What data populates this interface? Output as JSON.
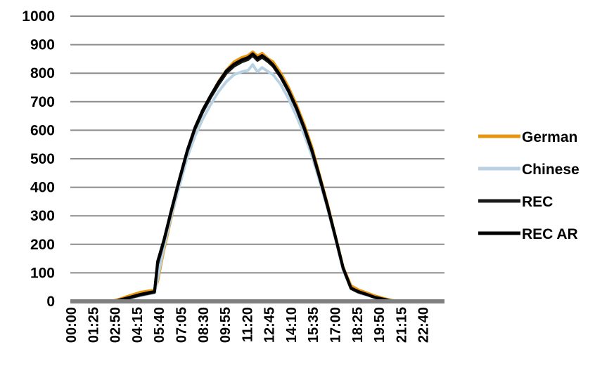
{
  "chart_data": {
    "type": "line",
    "title": "",
    "xlabel": "",
    "ylabel": "",
    "ylim": [
      0,
      1000
    ],
    "y_ticks": [
      "0",
      "100",
      "200",
      "300",
      "400",
      "500",
      "600",
      "700",
      "800",
      "900",
      "1000"
    ],
    "x_tick_labels": [
      "00:00",
      "01:25",
      "02:50",
      "04:15",
      "05:40",
      "07:05",
      "08:30",
      "09:55",
      "11:20",
      "12:45",
      "14:10",
      "15:35",
      "17:00",
      "18:25",
      "19:50",
      "21:15",
      "22:40"
    ],
    "x_range_hours": [
      0,
      24
    ],
    "grid": "horizontal",
    "legend_position": "right",
    "series": [
      {
        "name": "German",
        "color": "#E8960F",
        "points": [
          [
            0,
            0
          ],
          [
            2.5,
            0
          ],
          [
            3,
            5
          ],
          [
            3.8,
            20
          ],
          [
            4.5,
            32
          ],
          [
            5.4,
            40
          ],
          [
            5.6,
            70
          ],
          [
            6.0,
            180
          ],
          [
            6.5,
            300
          ],
          [
            7.0,
            410
          ],
          [
            7.5,
            520
          ],
          [
            8.0,
            600
          ],
          [
            8.5,
            670
          ],
          [
            9.0,
            720
          ],
          [
            9.5,
            770
          ],
          [
            10.0,
            810
          ],
          [
            10.5,
            840
          ],
          [
            11.0,
            855
          ],
          [
            11.4,
            862
          ],
          [
            11.7,
            875
          ],
          [
            12.0,
            860
          ],
          [
            12.3,
            870
          ],
          [
            12.7,
            850
          ],
          [
            13.0,
            840
          ],
          [
            13.5,
            800
          ],
          [
            14.0,
            750
          ],
          [
            14.5,
            690
          ],
          [
            15.0,
            620
          ],
          [
            15.5,
            540
          ],
          [
            16.0,
            440
          ],
          [
            16.5,
            340
          ],
          [
            17.0,
            230
          ],
          [
            17.5,
            120
          ],
          [
            18.0,
            55
          ],
          [
            18.5,
            40
          ],
          [
            19.0,
            30
          ],
          [
            19.5,
            20
          ],
          [
            20.0,
            12
          ],
          [
            20.5,
            5
          ],
          [
            21.0,
            0
          ],
          [
            24,
            0
          ]
        ]
      },
      {
        "name": "Chinese",
        "color": "#B8D2E4",
        "points": [
          [
            0,
            0
          ],
          [
            2.5,
            0
          ],
          [
            3,
            2
          ],
          [
            3.8,
            10
          ],
          [
            4.5,
            20
          ],
          [
            5.4,
            30
          ],
          [
            5.6,
            80
          ],
          [
            6.0,
            190
          ],
          [
            6.5,
            305
          ],
          [
            7.0,
            405
          ],
          [
            7.5,
            505
          ],
          [
            8.0,
            580
          ],
          [
            8.5,
            640
          ],
          [
            9.0,
            690
          ],
          [
            9.5,
            735
          ],
          [
            10.0,
            770
          ],
          [
            10.5,
            795
          ],
          [
            11.0,
            805
          ],
          [
            11.4,
            810
          ],
          [
            11.7,
            830
          ],
          [
            12.0,
            805
          ],
          [
            12.3,
            820
          ],
          [
            12.7,
            805
          ],
          [
            13.0,
            795
          ],
          [
            13.5,
            760
          ],
          [
            14.0,
            710
          ],
          [
            14.5,
            650
          ],
          [
            15.0,
            585
          ],
          [
            15.5,
            510
          ],
          [
            16.0,
            420
          ],
          [
            16.5,
            325
          ],
          [
            17.0,
            220
          ],
          [
            17.5,
            110
          ],
          [
            18.0,
            45
          ],
          [
            18.5,
            30
          ],
          [
            19.0,
            22
          ],
          [
            19.5,
            14
          ],
          [
            20.0,
            8
          ],
          [
            20.5,
            3
          ],
          [
            21.0,
            0
          ],
          [
            24,
            0
          ]
        ]
      },
      {
        "name": "REC",
        "color": "#1A1A1A",
        "points": [
          [
            0,
            0
          ],
          [
            2.5,
            0
          ],
          [
            3,
            2
          ],
          [
            3.8,
            12
          ],
          [
            4.5,
            22
          ],
          [
            5.4,
            32
          ],
          [
            5.6,
            130
          ],
          [
            6.0,
            210
          ],
          [
            6.5,
            320
          ],
          [
            7.0,
            425
          ],
          [
            7.5,
            525
          ],
          [
            8.0,
            605
          ],
          [
            8.5,
            665
          ],
          [
            9.0,
            715
          ],
          [
            9.5,
            760
          ],
          [
            10.0,
            800
          ],
          [
            10.5,
            825
          ],
          [
            11.0,
            840
          ],
          [
            11.4,
            848
          ],
          [
            11.7,
            862
          ],
          [
            12.0,
            845
          ],
          [
            12.3,
            856
          ],
          [
            12.7,
            840
          ],
          [
            13.0,
            825
          ],
          [
            13.5,
            785
          ],
          [
            14.0,
            735
          ],
          [
            14.5,
            675
          ],
          [
            15.0,
            605
          ],
          [
            15.5,
            525
          ],
          [
            16.0,
            430
          ],
          [
            16.5,
            330
          ],
          [
            17.0,
            225
          ],
          [
            17.5,
            115
          ],
          [
            18.0,
            45
          ],
          [
            18.5,
            32
          ],
          [
            19.0,
            24
          ],
          [
            19.5,
            14
          ],
          [
            20.0,
            8
          ],
          [
            20.5,
            3
          ],
          [
            21.0,
            0
          ],
          [
            24,
            0
          ]
        ]
      },
      {
        "name": "REC AR",
        "color": "#000000",
        "points": [
          [
            0,
            0
          ],
          [
            2.5,
            0
          ],
          [
            3,
            3
          ],
          [
            3.8,
            14
          ],
          [
            4.5,
            25
          ],
          [
            5.4,
            35
          ],
          [
            5.6,
            140
          ],
          [
            6.0,
            215
          ],
          [
            6.5,
            325
          ],
          [
            7.0,
            430
          ],
          [
            7.5,
            530
          ],
          [
            8.0,
            610
          ],
          [
            8.5,
            672
          ],
          [
            9.0,
            722
          ],
          [
            9.5,
            768
          ],
          [
            10.0,
            808
          ],
          [
            10.5,
            832
          ],
          [
            11.0,
            847
          ],
          [
            11.4,
            855
          ],
          [
            11.7,
            868
          ],
          [
            12.0,
            852
          ],
          [
            12.3,
            862
          ],
          [
            12.7,
            846
          ],
          [
            13.0,
            830
          ],
          [
            13.5,
            790
          ],
          [
            14.0,
            740
          ],
          [
            14.5,
            680
          ],
          [
            15.0,
            610
          ],
          [
            15.5,
            530
          ],
          [
            16.0,
            435
          ],
          [
            16.5,
            335
          ],
          [
            17.0,
            228
          ],
          [
            17.5,
            118
          ],
          [
            18.0,
            47
          ],
          [
            18.5,
            34
          ],
          [
            19.0,
            25
          ],
          [
            19.5,
            15
          ],
          [
            20.0,
            9
          ],
          [
            20.5,
            3
          ],
          [
            21.0,
            0
          ],
          [
            24,
            0
          ]
        ]
      }
    ]
  }
}
